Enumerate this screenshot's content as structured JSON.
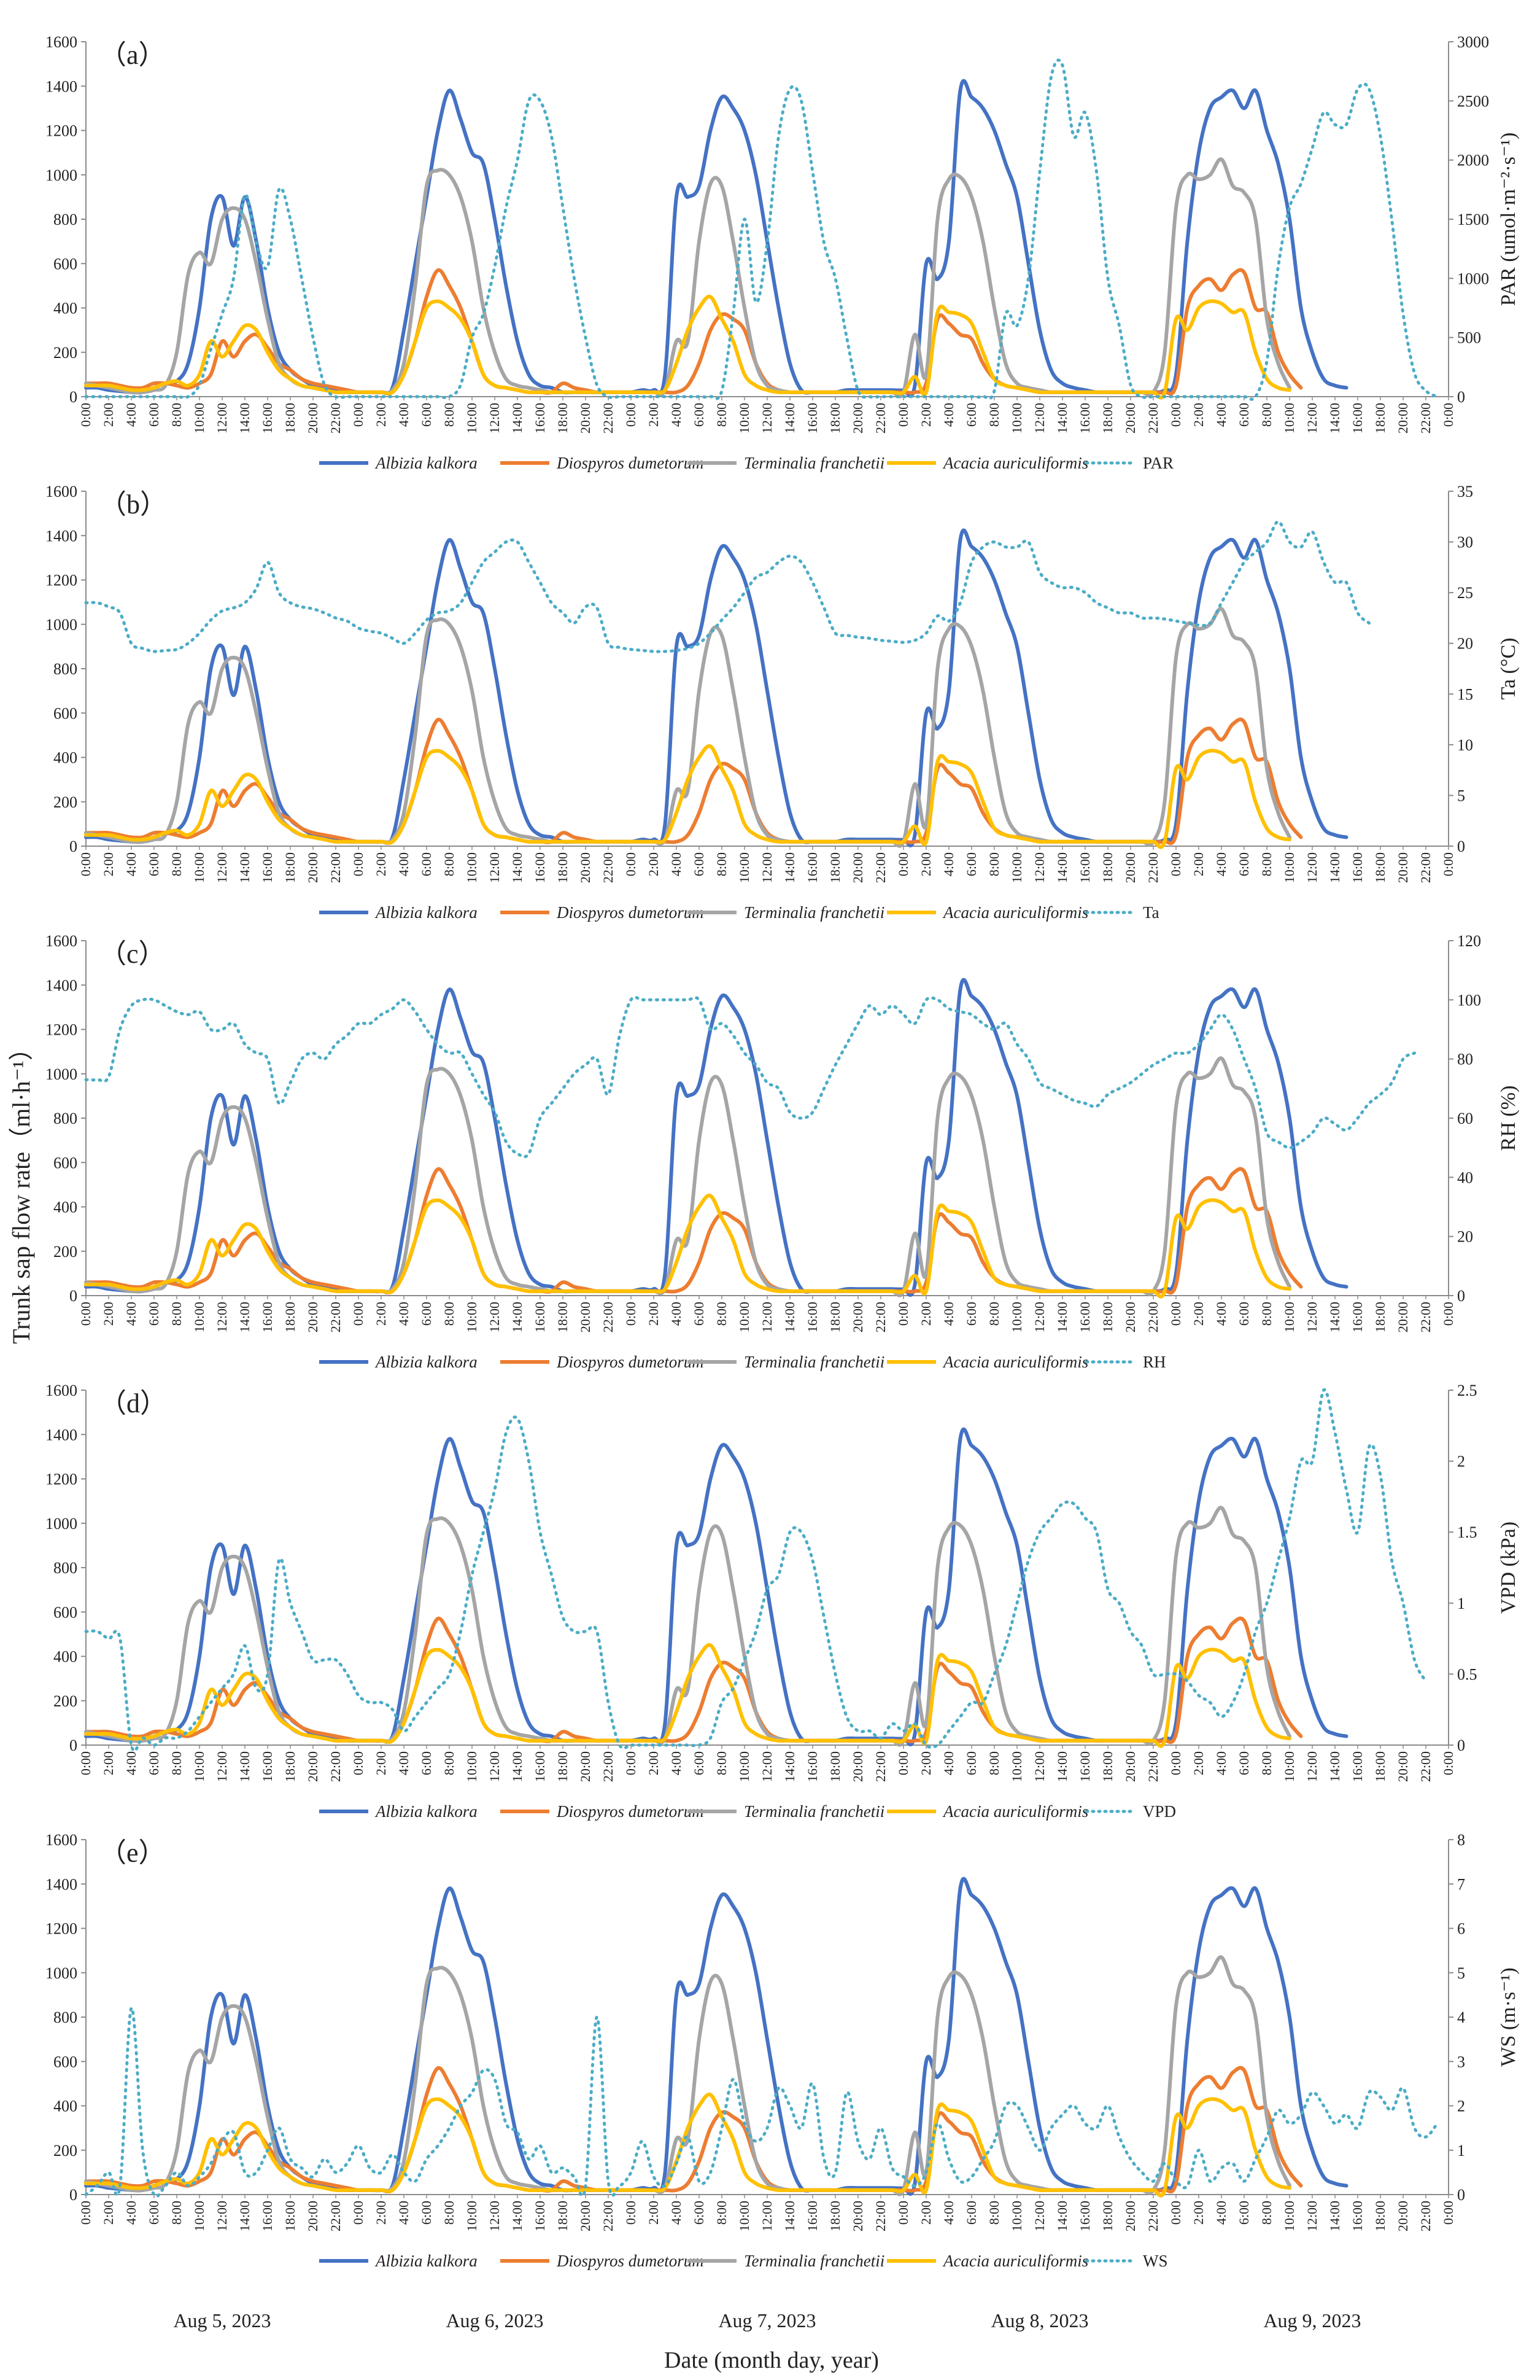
{
  "figure": {
    "shared_ylabel": "Trunk sap flow rate（ml·h⁻¹）",
    "xlabel": "Date (month day, year)",
    "dates": [
      "Aug 5, 2023",
      "Aug 6, 2023",
      "Aug 7, 2023",
      "Aug 8, 2023",
      "Aug 9, 2023"
    ],
    "time_tick_labels": [
      "0:00",
      "2:00",
      "4:00",
      "6:00",
      "8:00",
      "10:00",
      "12:00",
      "14:00",
      "16:00",
      "18:00",
      "20:00",
      "22:00",
      "0:00",
      "2:00",
      "4:00",
      "6:00",
      "8:00",
      "10:00",
      "12:00",
      "14:00",
      "16:00",
      "18:00",
      "20:00",
      "22:00",
      "0:00",
      "2:00",
      "4:00",
      "6:00",
      "8:00",
      "10:00",
      "12:00",
      "14:00",
      "16:00",
      "18:00",
      "20:00",
      "22:00",
      "0:00",
      "2:00",
      "4:00",
      "6:00",
      "8:00",
      "10:00",
      "12:00",
      "14:00",
      "16:00",
      "18:00",
      "20:00",
      "22:00",
      "0:00",
      "2:00",
      "4:00",
      "6:00",
      "8:00",
      "10:00",
      "12:00",
      "14:00",
      "16:00",
      "18:00",
      "20:00",
      "22:00",
      "0:00"
    ]
  },
  "chart_data": [
    {
      "type": "line",
      "panel_label": "（a）",
      "x_hours": [
        0,
        120
      ],
      "ylabel_right": "PAR (umol·m⁻²·s⁻¹)",
      "ylim_left": [
        0,
        1600
      ],
      "ylim_right": [
        0,
        3000
      ],
      "left_ticks": [
        "0",
        "200",
        "400",
        "600",
        "800",
        "1000",
        "1200",
        "1400",
        "1600"
      ],
      "right_ticks": [
        "0",
        "500",
        "1000",
        "1500",
        "2000",
        "2500",
        "3000"
      ],
      "env_name": "PAR",
      "env_values": [
        0,
        0,
        0,
        0,
        0,
        0,
        0,
        0,
        0,
        0,
        100,
        400,
        700,
        1000,
        1700,
        1300,
        1100,
        1750,
        1500,
        1000,
        500,
        100,
        0,
        0,
        0,
        0,
        0,
        0,
        0,
        0,
        0,
        0,
        0,
        100,
        500,
        700,
        1100,
        1600,
        2000,
        2500,
        2500,
        2200,
        1600,
        1000,
        500,
        100,
        0,
        0,
        0,
        0,
        0,
        0,
        0,
        0,
        0,
        0,
        50,
        700,
        1500,
        800,
        1300,
        2200,
        2600,
        2500,
        1900,
        1300,
        1000,
        500,
        50,
        0,
        0,
        0,
        0,
        0,
        0,
        0,
        0,
        0,
        0,
        0,
        50,
        700,
        600,
        1000,
        1900,
        2700,
        2800,
        2200,
        2400,
        1900,
        1000,
        600,
        100,
        0,
        0,
        0,
        0,
        0,
        0,
        0,
        0,
        0,
        0,
        0,
        300,
        1100,
        1600,
        1800,
        2100,
        2400,
        2300,
        2300,
        2600,
        2600,
        2200,
        1500,
        700,
        200,
        50,
        0
      ]
    },
    {
      "type": "line",
      "panel_label": "（b）",
      "x_hours": [
        0,
        120
      ],
      "ylabel_right": "Ta (°C)",
      "ylim_left": [
        0,
        1600
      ],
      "ylim_right": [
        0,
        35
      ],
      "left_ticks": [
        "0",
        "200",
        "400",
        "600",
        "800",
        "1000",
        "1200",
        "1400",
        "1600"
      ],
      "right_ticks": [
        "0",
        "5",
        "10",
        "15",
        "20",
        "25",
        "30",
        "35"
      ],
      "env_name": "Ta",
      "env_values": [
        24,
        24,
        23.6,
        23,
        20,
        19.5,
        19.2,
        19.3,
        19.4,
        20,
        21,
        22.3,
        23.2,
        23.5,
        24,
        25.4,
        28,
        25,
        24,
        23.6,
        23.4,
        23,
        22.5,
        22.2,
        21.5,
        21.2,
        21,
        20.5,
        20,
        21,
        22.3,
        23,
        23.2,
        24,
        26,
        28,
        29,
        30,
        30,
        28,
        26,
        24,
        23,
        22,
        23.6,
        23.5,
        20,
        19.6,
        19.4,
        19.3,
        19.2,
        19.2,
        19.3,
        19.5,
        20,
        21,
        22.3,
        23.5,
        25,
        26.5,
        27,
        28,
        28.6,
        28,
        26,
        23.5,
        21,
        20.8,
        20.6,
        20.5,
        20.3,
        20.2,
        20.1,
        20.3,
        21,
        22.7,
        22.2,
        24,
        28,
        29.5,
        30,
        29.5,
        29.5,
        30,
        27,
        26,
        25.5,
        25.5,
        25,
        24,
        23.5,
        23,
        23,
        22.5,
        22.5,
        22.4,
        22.2,
        22,
        21.8,
        22,
        24,
        26,
        28,
        29,
        30,
        32,
        30,
        29.5,
        31,
        28,
        26,
        26,
        23,
        22
      ]
    },
    {
      "type": "line",
      "panel_label": "（c）",
      "x_hours": [
        0,
        120
      ],
      "ylabel_right": "RH (%)",
      "ylim_left": [
        0,
        1600
      ],
      "ylim_right": [
        0,
        120
      ],
      "left_ticks": [
        "0",
        "200",
        "400",
        "600",
        "800",
        "1000",
        "1200",
        "1400",
        "1600"
      ],
      "right_ticks": [
        "0",
        "20",
        "40",
        "60",
        "80",
        "100",
        "120"
      ],
      "env_name": "RH",
      "env_values": [
        73,
        73,
        74,
        90,
        98,
        100,
        100,
        98,
        96,
        95,
        96,
        90,
        90,
        92,
        85,
        82,
        80,
        65,
        72,
        80,
        82,
        80,
        85,
        88,
        92,
        92,
        95,
        97,
        100,
        96,
        90,
        85,
        82,
        82,
        75,
        68,
        62,
        52,
        48,
        48,
        60,
        65,
        70,
        75,
        78,
        80,
        68,
        88,
        100,
        100,
        100,
        100,
        100,
        100,
        100,
        90,
        92,
        88,
        82,
        78,
        72,
        70,
        62,
        60,
        62,
        70,
        78,
        85,
        92,
        98,
        95,
        98,
        95,
        92,
        100,
        100,
        97,
        96,
        95,
        92,
        90,
        92,
        85,
        80,
        72,
        70,
        68,
        66,
        65,
        64,
        68,
        70,
        72,
        75,
        78,
        80,
        82,
        82,
        85,
        90,
        95,
        90,
        80,
        70,
        55,
        52,
        50,
        52,
        55,
        60,
        58,
        56,
        60,
        65,
        68,
        72,
        80,
        82
      ]
    },
    {
      "type": "line",
      "panel_label": "（d）",
      "x_hours": [
        0,
        120
      ],
      "ylabel_right": "VPD (kPa)",
      "ylim_left": [
        0,
        1600
      ],
      "ylim_right": [
        0,
        2.5
      ],
      "left_ticks": [
        "0",
        "200",
        "400",
        "600",
        "800",
        "1000",
        "1200",
        "1400",
        "1600"
      ],
      "right_ticks": [
        "0",
        "0.5",
        "1",
        "1.5",
        "2",
        "2.5"
      ],
      "env_name": "VPD",
      "env_values": [
        0.8,
        0.8,
        0.75,
        0.75,
        0,
        0.05,
        0,
        0.05,
        0.05,
        0.1,
        0.2,
        0.3,
        0.4,
        0.5,
        0.7,
        0.4,
        0.5,
        1.3,
        1,
        0.8,
        0.6,
        0.6,
        0.6,
        0.5,
        0.35,
        0.3,
        0.3,
        0.25,
        0.1,
        0.2,
        0.3,
        0.4,
        0.5,
        0.8,
        1.2,
        1.5,
        1.8,
        2.2,
        2.3,
        2,
        1.5,
        1.2,
        0.9,
        0.8,
        0.8,
        0.8,
        0.3,
        0,
        0,
        0,
        0,
        0,
        0,
        0,
        0,
        0.05,
        0.3,
        0.4,
        0.6,
        0.8,
        1.1,
        1.2,
        1.5,
        1.5,
        1.3,
        0.9,
        0.5,
        0.2,
        0.1,
        0.1,
        0.05,
        0.15,
        0.1,
        0.15,
        0,
        0,
        0.1,
        0.2,
        0.3,
        0.3,
        0.5,
        0.7,
        1,
        1.3,
        1.5,
        1.6,
        1.7,
        1.7,
        1.6,
        1.5,
        1.1,
        1,
        0.8,
        0.7,
        0.5,
        0.5,
        0.5,
        0.45,
        0.35,
        0.3,
        0.2,
        0.3,
        0.5,
        0.8,
        1,
        1.3,
        1.6,
        2,
        2,
        2.5,
        2.2,
        1.8,
        1.5,
        2.1,
        1.9,
        1.3,
        1,
        0.6,
        0.45
      ]
    },
    {
      "type": "line",
      "panel_label": "（e）",
      "x_hours": [
        0,
        120
      ],
      "ylabel_right": "WS (m·s⁻¹)",
      "ylim_left": [
        0,
        1600
      ],
      "ylim_right": [
        0,
        8
      ],
      "left_ticks": [
        "0",
        "200",
        "400",
        "600",
        "800",
        "1000",
        "1200",
        "1400",
        "1600"
      ],
      "right_ticks": [
        "0",
        "1",
        "2",
        "3",
        "4",
        "5",
        "6",
        "7",
        "8"
      ],
      "env_name": "WS",
      "env_values": [
        0,
        0.2,
        0.5,
        0.2,
        4.2,
        1,
        0,
        0.2,
        0.5,
        0.2,
        0.4,
        0.7,
        1.2,
        1.4,
        0.5,
        0.5,
        1,
        1.5,
        0.8,
        0.6,
        0.4,
        0.8,
        0.5,
        0.7,
        1.1,
        0.6,
        0.5,
        0.9,
        0.5,
        0.3,
        0.8,
        1.1,
        1.5,
        2,
        2.3,
        2.8,
        2.6,
        1.6,
        1.4,
        0.8,
        1.1,
        0.5,
        0.6,
        0.4,
        0.2,
        4,
        0.3,
        0.2,
        0.5,
        1.2,
        0.4,
        0.2,
        0.7,
        1.3,
        0.3,
        0.5,
        1.5,
        2.6,
        1.6,
        1.2,
        1.5,
        2.4,
        2,
        1.5,
        2.5,
        0.8,
        0.5,
        2.3,
        1.2,
        0.8,
        1.5,
        0.6,
        0.4,
        0.2,
        0.5,
        1.6,
        0.8,
        0.3,
        0.4,
        0.8,
        1.2,
        2,
        2,
        1.5,
        1,
        1.5,
        1.8,
        2,
        1.6,
        1.5,
        2,
        1.3,
        0.8,
        0.5,
        0.3,
        0.7,
        0.3,
        0.2,
        1,
        0.3,
        0.6,
        0.7,
        0.3,
        0.8,
        1.3,
        1.9,
        1.6,
        1.8,
        2.3,
        2,
        1.6,
        1.8,
        1.5,
        2.3,
        2.2,
        1.9,
        2.4,
        1.5,
        1.3,
        1.6
      ]
    }
  ],
  "sap_series": [
    {
      "name": "Albizia kalkora",
      "color": "#4472c4",
      "values": [
        40,
        40,
        30,
        25,
        20,
        20,
        40,
        60,
        70,
        150,
        400,
        800,
        900,
        680,
        900,
        700,
        400,
        200,
        120,
        80,
        50,
        40,
        30,
        20,
        20,
        20,
        20,
        40,
        300,
        600,
        900,
        1200,
        1380,
        1250,
        1100,
        1050,
        800,
        500,
        250,
        100,
        50,
        40,
        20,
        20,
        20,
        20,
        20,
        20,
        20,
        30,
        30,
        100,
        900,
        900,
        950,
        1200,
        1350,
        1300,
        1200,
        1000,
        700,
        400,
        150,
        30,
        20,
        20,
        20,
        30,
        30,
        30,
        30,
        30,
        30,
        50,
        600,
        530,
        700,
        1380,
        1350,
        1300,
        1200,
        1050,
        900,
        600,
        300,
        120,
        60,
        40,
        30,
        20,
        20,
        20,
        20,
        20,
        20,
        30,
        100,
        700,
        1100,
        1300,
        1350,
        1380,
        1300,
        1380,
        1200,
        1050,
        800,
        400,
        200,
        80,
        50,
        40
      ]
    },
    {
      "name": "Diospyros dumetorum",
      "color": "#ed7d31",
      "values": [
        60,
        60,
        60,
        50,
        40,
        40,
        60,
        60,
        50,
        40,
        60,
        100,
        250,
        180,
        250,
        280,
        220,
        150,
        120,
        80,
        60,
        50,
        40,
        30,
        20,
        20,
        20,
        20,
        100,
        250,
        450,
        570,
        500,
        400,
        250,
        100,
        50,
        40,
        30,
        20,
        20,
        20,
        60,
        40,
        30,
        20,
        20,
        20,
        20,
        20,
        20,
        20,
        20,
        50,
        150,
        300,
        370,
        350,
        300,
        150,
        60,
        30,
        20,
        20,
        20,
        20,
        20,
        20,
        20,
        20,
        20,
        20,
        20,
        20,
        60,
        350,
        330,
        280,
        260,
        150,
        80,
        50,
        40,
        30,
        20,
        20,
        20,
        20,
        20,
        20,
        20,
        20,
        20,
        20,
        20,
        20,
        50,
        400,
        500,
        530,
        480,
        550,
        560,
        400,
        380,
        200,
        100,
        40
      ]
    },
    {
      "name": "Terminalia franchetii",
      "color": "#a5a5a5",
      "values": [
        60,
        50,
        40,
        30,
        20,
        20,
        30,
        50,
        200,
        550,
        650,
        600,
        800,
        850,
        800,
        600,
        350,
        150,
        80,
        50,
        40,
        30,
        20,
        20,
        20,
        20,
        20,
        30,
        150,
        500,
        950,
        1020,
        1000,
        900,
        700,
        400,
        200,
        80,
        50,
        40,
        30,
        20,
        20,
        20,
        20,
        20,
        20,
        20,
        20,
        20,
        20,
        30,
        250,
        250,
        700,
        960,
        950,
        700,
        400,
        150,
        50,
        30,
        20,
        20,
        20,
        20,
        20,
        20,
        20,
        20,
        20,
        20,
        20,
        280,
        100,
        800,
        980,
        990,
        900,
        700,
        400,
        150,
        60,
        40,
        30,
        20,
        20,
        20,
        20,
        20,
        20,
        20,
        20,
        20,
        20,
        200,
        850,
        1000,
        980,
        1000,
        1070,
        950,
        920,
        800,
        350,
        150,
        40
      ]
    },
    {
      "name": "Acacia auriculiformis",
      "color": "#ffc000",
      "values": [
        50,
        50,
        50,
        40,
        30,
        30,
        40,
        60,
        70,
        50,
        100,
        250,
        180,
        250,
        320,
        300,
        200,
        120,
        80,
        50,
        40,
        30,
        20,
        20,
        20,
        20,
        20,
        20,
        100,
        250,
        400,
        430,
        400,
        350,
        250,
        100,
        50,
        40,
        30,
        20,
        20,
        20,
        20,
        20,
        20,
        20,
        20,
        20,
        20,
        20,
        20,
        30,
        150,
        300,
        400,
        450,
        350,
        250,
        100,
        50,
        30,
        20,
        20,
        20,
        20,
        20,
        20,
        20,
        20,
        20,
        20,
        20,
        20,
        90,
        20,
        380,
        380,
        370,
        330,
        200,
        80,
        50,
        40,
        30,
        20,
        20,
        20,
        20,
        20,
        20,
        20,
        20,
        20,
        20,
        20,
        20,
        350,
        300,
        400,
        430,
        420,
        380,
        380,
        200,
        80,
        40,
        30
      ]
    }
  ],
  "env_color": "#4bacc6"
}
